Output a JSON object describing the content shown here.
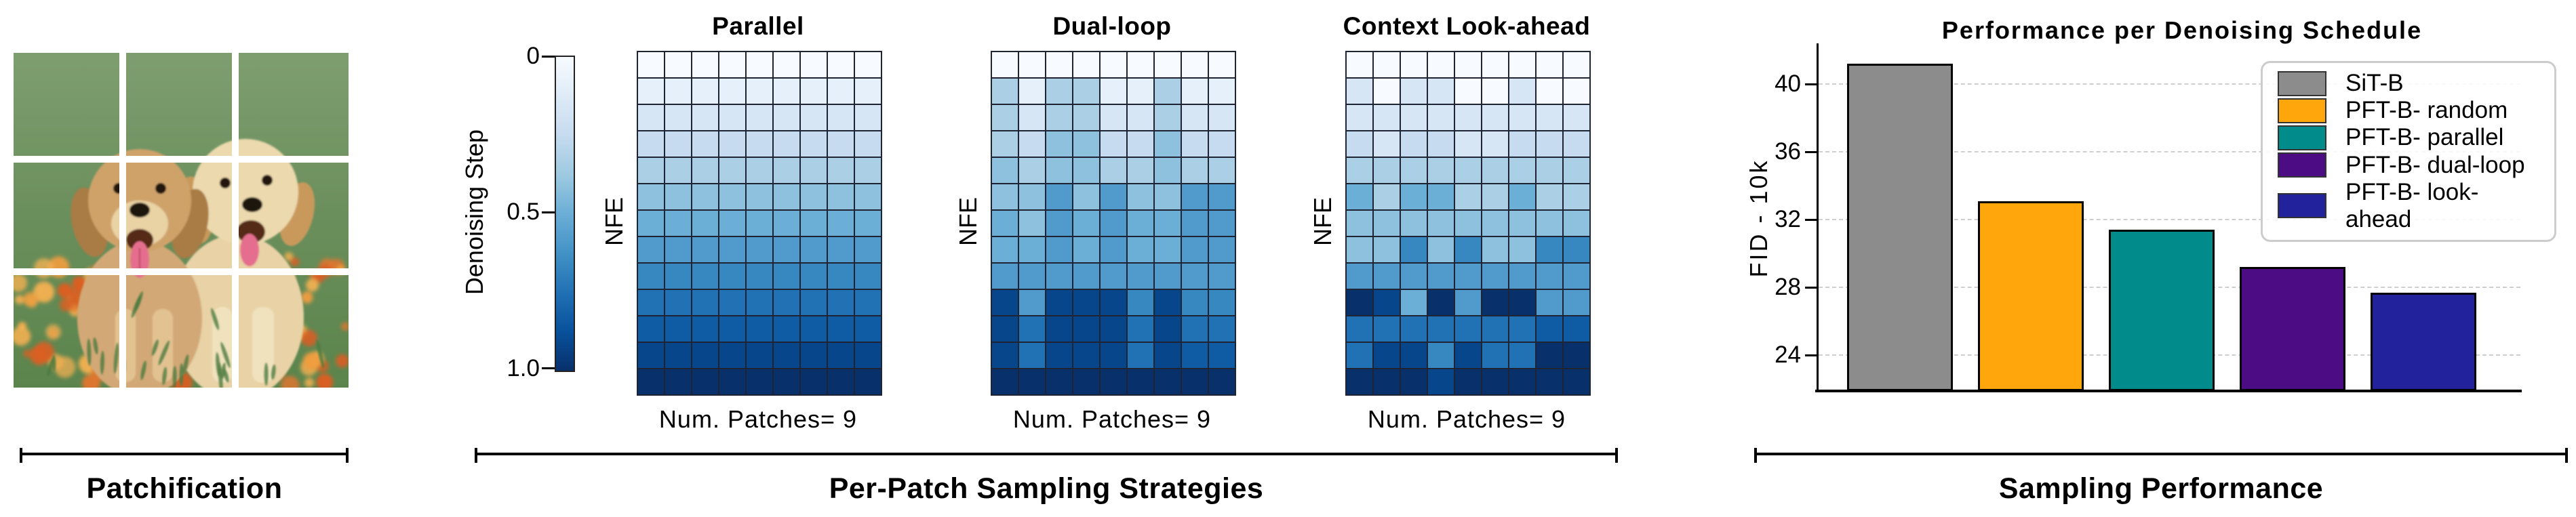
{
  "patchification": {
    "label": "Patchification",
    "image_alt": "Two golden retriever puppies sitting on green grass scattered with orange flowers, split into a 3x3 grid of patches",
    "grid": {
      "rows": 3,
      "cols": 3,
      "num_patches": 9
    },
    "palette": {
      "grass_top": "#7e9e70",
      "grass_mid": "#6b8f5c",
      "grass_bottom": "#5b844c",
      "grass_blade": "#4d7a3f",
      "flower_colors": [
        "#e0762e",
        "#ef9d40",
        "#d95f24",
        "#f2b051"
      ],
      "pup1_body": "#d2a876",
      "pup1_head": "#cfa26b",
      "pup1_ear": "#a97b44",
      "pup1_muzzle": "#e9d2a4",
      "pup1_chest": "#e3c291",
      "pup2_body": "#e8d2a6",
      "pup2_head": "#ecd9ad",
      "pup2_ear": "#c9995c",
      "pup2_chest": "#f0e2bd",
      "nose": "#1a1410",
      "eye": "#201409",
      "mouth": "#542a17",
      "tongue": "#e56e8e",
      "tongue_line": "#c94f70",
      "grid_gap": "#ffffff"
    }
  },
  "strategies": {
    "label": "Per-Patch Sampling Strategies",
    "colorbar": {
      "title": "Denoising Step",
      "ticks": [
        "0",
        "0.5",
        "1.0"
      ]
    }
  },
  "performance": {
    "label": "Sampling Performance"
  },
  "colormap": {
    "name": "Blues",
    "anchors": [
      "#f7fbff",
      "#deebf7",
      "#c6dbef",
      "#9ecae1",
      "#6baed6",
      "#4292c6",
      "#2171b5",
      "#08519c",
      "#08306b"
    ]
  },
  "chart_data": [
    {
      "type": "heatmap",
      "title": "Parallel",
      "xlabel": "Num. Patches= 9",
      "ylabel": "NFE",
      "rows": 13,
      "cols": 9,
      "value_meaning": "denoising step index per patch; 0 = step 0 (lightest), 12 = step 1.0 (darkest); color = index/12 on Blues colormap",
      "grid": [
        [
          0,
          0,
          0,
          0,
          0,
          0,
          0,
          0,
          0
        ],
        [
          1,
          1,
          1,
          1,
          1,
          1,
          1,
          1,
          1
        ],
        [
          2,
          2,
          2,
          2,
          2,
          2,
          2,
          2,
          2
        ],
        [
          3,
          3,
          3,
          3,
          3,
          3,
          3,
          3,
          3
        ],
        [
          4,
          4,
          4,
          4,
          4,
          4,
          4,
          4,
          4
        ],
        [
          5,
          5,
          5,
          5,
          5,
          5,
          5,
          5,
          5
        ],
        [
          6,
          6,
          6,
          6,
          6,
          6,
          6,
          6,
          6
        ],
        [
          7,
          7,
          7,
          7,
          7,
          7,
          7,
          7,
          7
        ],
        [
          8,
          8,
          8,
          8,
          8,
          8,
          8,
          8,
          8
        ],
        [
          9,
          9,
          9,
          9,
          9,
          9,
          9,
          9,
          9
        ],
        [
          10,
          10,
          10,
          10,
          10,
          10,
          10,
          10,
          10
        ],
        [
          11,
          11,
          11,
          11,
          11,
          11,
          11,
          11,
          11
        ],
        [
          12,
          12,
          12,
          12,
          12,
          12,
          12,
          12,
          12
        ]
      ]
    },
    {
      "type": "heatmap",
      "title": "Dual-loop",
      "xlabel": "Num. Patches= 9",
      "ylabel": "NFE",
      "rows": 13,
      "cols": 9,
      "value_meaning": "denoising step index per patch; 0 = step 0 (lightest), 12 = step 1.0 (darkest); color = index/12 on Blues colormap",
      "grid": [
        [
          0,
          0,
          0,
          0,
          0,
          0,
          0,
          0,
          0
        ],
        [
          4,
          1,
          4,
          4,
          1,
          1,
          4,
          1,
          1
        ],
        [
          4,
          2,
          4,
          4,
          2,
          2,
          4,
          2,
          2
        ],
        [
          4,
          3,
          5,
          5,
          3,
          3,
          5,
          3,
          3
        ],
        [
          5,
          4,
          5,
          5,
          4,
          4,
          5,
          4,
          4
        ],
        [
          5,
          5,
          7,
          5,
          7,
          5,
          5,
          7,
          7
        ],
        [
          6,
          5,
          7,
          6,
          7,
          6,
          6,
          7,
          7
        ],
        [
          6,
          6,
          7,
          6,
          7,
          6,
          6,
          7,
          7
        ],
        [
          7,
          7,
          7,
          7,
          7,
          7,
          7,
          7,
          7
        ],
        [
          11,
          7,
          11,
          11,
          11,
          8,
          11,
          8,
          8
        ],
        [
          11,
          9,
          11,
          11,
          11,
          9,
          11,
          9,
          9
        ],
        [
          11,
          9,
          11,
          11,
          11,
          9,
          11,
          10,
          10
        ],
        [
          12,
          12,
          12,
          12,
          12,
          12,
          12,
          12,
          12
        ]
      ]
    },
    {
      "type": "heatmap",
      "title": "Context Look-ahead",
      "xlabel": "Num. Patches= 9",
      "ylabel": "NFE",
      "rows": 13,
      "cols": 9,
      "value_meaning": "denoising step index per patch; 0 = step 0 (lightest), 12 = step 1.0 (darkest); color = index/12 on Blues colormap",
      "grid": [
        [
          0,
          0,
          0,
          0,
          0,
          0,
          0,
          0,
          0
        ],
        [
          2,
          0,
          2,
          2,
          0,
          0,
          2,
          0,
          0
        ],
        [
          2,
          2,
          2,
          2,
          2,
          2,
          2,
          2,
          2
        ],
        [
          3,
          2,
          3,
          3,
          2,
          2,
          3,
          3,
          3
        ],
        [
          4,
          4,
          4,
          4,
          4,
          4,
          4,
          4,
          4
        ],
        [
          6,
          4,
          6,
          6,
          4,
          4,
          6,
          4,
          4
        ],
        [
          5,
          5,
          5,
          5,
          5,
          5,
          5,
          5,
          5
        ],
        [
          5,
          5,
          8,
          5,
          8,
          5,
          5,
          8,
          8
        ],
        [
          7,
          7,
          7,
          7,
          7,
          7,
          7,
          7,
          7
        ],
        [
          12,
          11,
          6,
          12,
          7,
          12,
          12,
          7,
          7
        ],
        [
          9,
          9,
          9,
          9,
          9,
          9,
          9,
          10,
          10
        ],
        [
          9,
          11,
          11,
          8,
          11,
          9,
          9,
          12,
          12
        ],
        [
          12,
          12,
          12,
          11,
          12,
          12,
          12,
          12,
          12
        ]
      ]
    },
    {
      "type": "bar",
      "title": "Performance per Denoising Schedule",
      "xlabel": "",
      "ylabel": "FID - 10k",
      "categories": [
        "SiT-B",
        "PFT-B- random",
        "PFT-B- parallel",
        "PFT-B- dual-loop",
        "PFT-B- look-ahead"
      ],
      "values": [
        41.2,
        33.1,
        31.4,
        29.2,
        27.7
      ],
      "bar_colors": [
        "#8c8c8c",
        "#ffa60d",
        "#028b8b",
        "#4b0c84",
        "#22229c"
      ],
      "yticks": [
        24,
        28,
        32,
        36,
        40
      ],
      "ylim": [
        22,
        42.2
      ],
      "gridlines": "horizontal dashed",
      "legend_position": "upper right"
    }
  ]
}
